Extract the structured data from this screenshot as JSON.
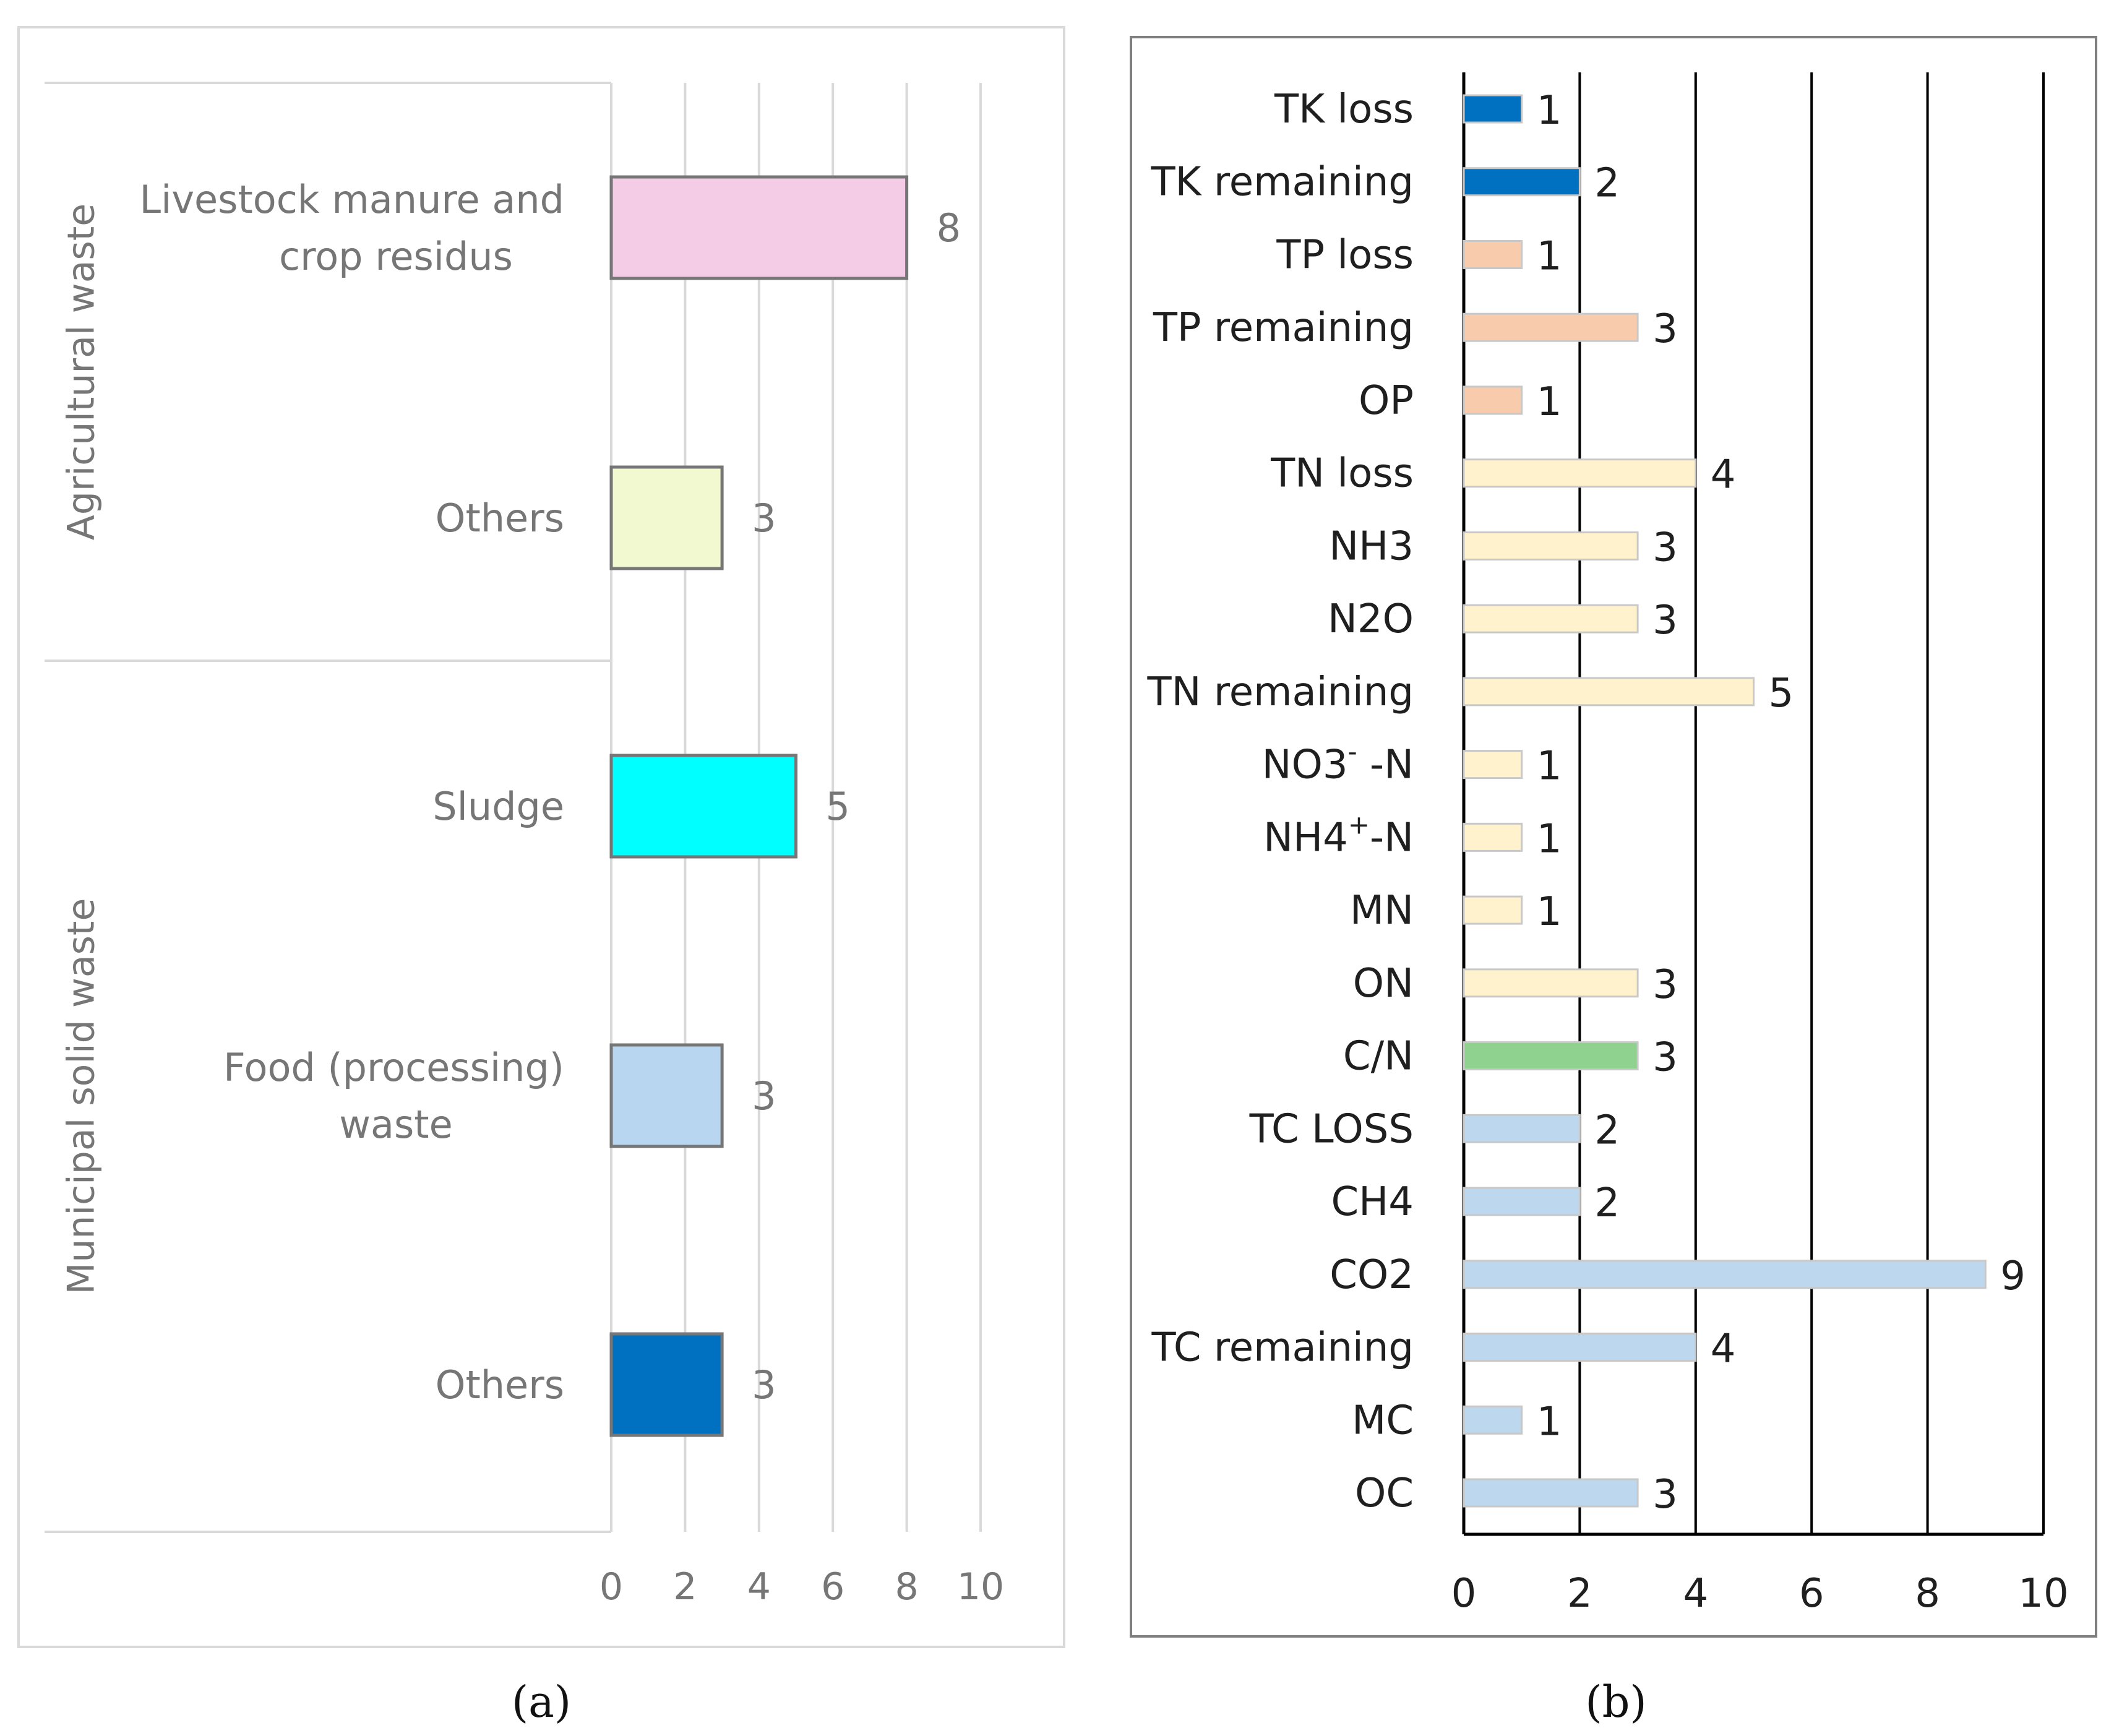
{
  "chart_data": [
    {
      "type": "bar",
      "panel": "a",
      "caption": "(a)",
      "orientation": "horizontal",
      "xlim": [
        0,
        10
      ],
      "xticks": [
        0,
        2,
        4,
        6,
        8,
        10
      ],
      "groups": [
        {
          "name": "Agricultural waste",
          "items": [
            {
              "label_lines": [
                "Livestock manure and",
                "crop residus"
              ],
              "value": 8,
              "color": "#f4cce6"
            },
            {
              "label_lines": [
                "Others"
              ],
              "value": 3,
              "color": "#f2f8d0"
            }
          ]
        },
        {
          "name": "Municipal solid waste",
          "items": [
            {
              "label_lines": [
                "Sludge"
              ],
              "value": 5,
              "color": "#00ffff"
            },
            {
              "label_lines": [
                "Food (processing)",
                "waste"
              ],
              "value": 3,
              "color": "#b8d6ef"
            },
            {
              "label_lines": [
                "Others"
              ],
              "value": 3,
              "color": "#0070c0"
            }
          ]
        }
      ]
    },
    {
      "type": "bar",
      "panel": "b",
      "caption": "(b)",
      "orientation": "horizontal",
      "xlim": [
        0,
        10
      ],
      "xticks": [
        0,
        2,
        4,
        6,
        8,
        10
      ],
      "categories": [
        "TK loss",
        "TK remaining",
        "TP loss",
        "TP remaining",
        "OP",
        "TN loss",
        "NH3",
        "N2O",
        "TN remaining",
        "NO3- -N",
        "NH4+-N",
        "MN",
        "ON",
        "C/N",
        "TC LOSS",
        "CH4",
        "CO2",
        "TC remaining",
        "MC",
        "OC"
      ],
      "labels": [
        {
          "base": "TK loss"
        },
        {
          "base": "TK remaining"
        },
        {
          "base": "TP loss"
        },
        {
          "base": "TP remaining"
        },
        {
          "base": "OP"
        },
        {
          "base": "TN loss"
        },
        {
          "base": "NH3"
        },
        {
          "base": "N2O"
        },
        {
          "base": "TN remaining"
        },
        {
          "base": "NO3",
          "sup": "-",
          "tail": " -N"
        },
        {
          "base": "NH4",
          "sup": "+",
          "tail": "-N"
        },
        {
          "base": "MN"
        },
        {
          "base": "ON"
        },
        {
          "base": "C/N"
        },
        {
          "base": "TC LOSS"
        },
        {
          "base": "CH4"
        },
        {
          "base": "CO2"
        },
        {
          "base": "TC remaining"
        },
        {
          "base": "MC"
        },
        {
          "base": "OC"
        }
      ],
      "values": [
        1,
        2,
        1,
        3,
        1,
        4,
        3,
        3,
        5,
        1,
        1,
        1,
        3,
        3,
        2,
        2,
        9,
        4,
        1,
        3
      ],
      "colors": [
        "#0070c0",
        "#0070c0",
        "#f8cbad",
        "#f8cbad",
        "#f8cbad",
        "#fff2cc",
        "#fff2cc",
        "#fff2cc",
        "#fff2cc",
        "#fff2cc",
        "#fff2cc",
        "#fff2cc",
        "#fff2cc",
        "#8fd18f",
        "#bdd7ee",
        "#bdd7ee",
        "#bdd7ee",
        "#bdd7ee",
        "#bdd7ee",
        "#bdd7ee"
      ]
    }
  ]
}
